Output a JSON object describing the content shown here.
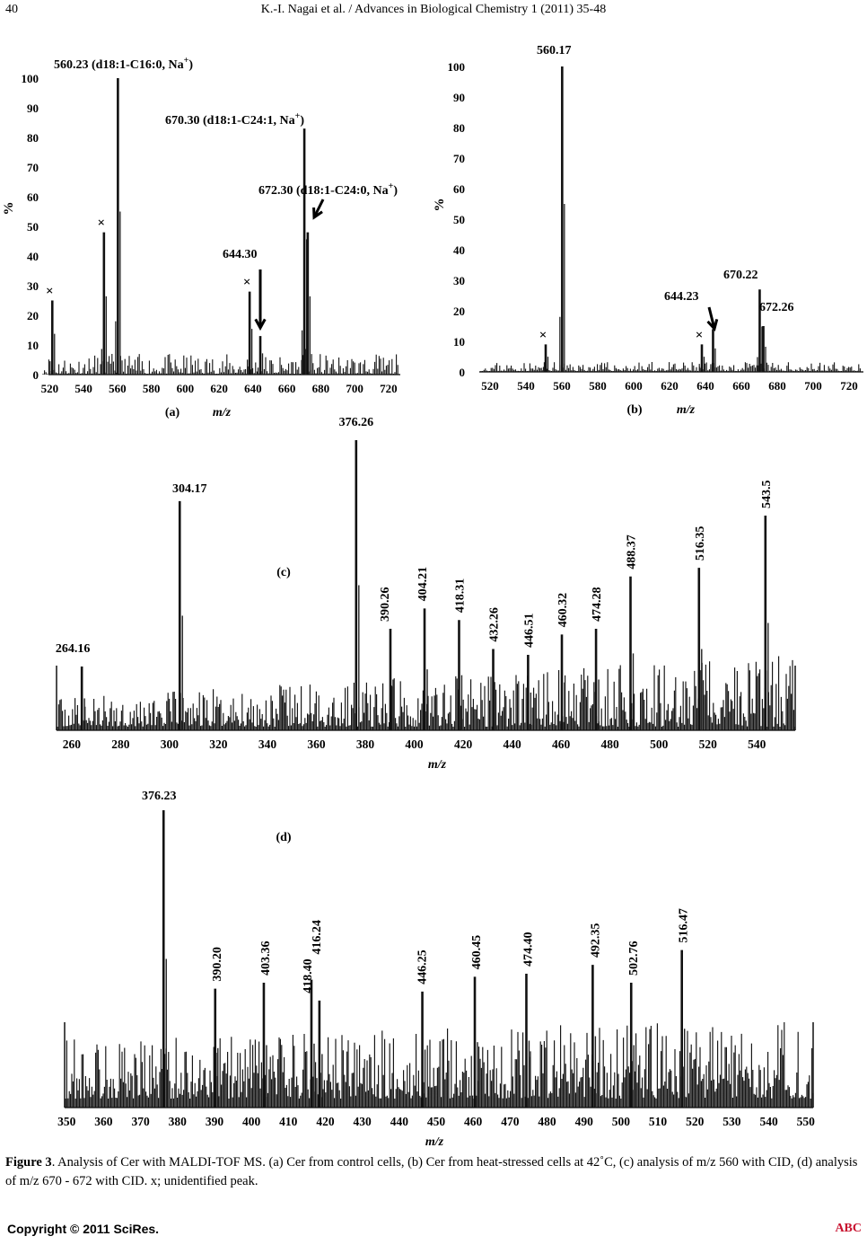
{
  "header": {
    "page_number": "40",
    "citation": "K.-I. Nagai et al. / Advances in Biological Chemistry 1 (2011) 35-48"
  },
  "figure": {
    "caption_label": "Figure 3",
    "caption_text": ". Analysis of Cer with MALDI-TOF MS. (a) Cer from control cells, (b) Cer from heat-stressed cells at 42˚C, (c) analysis of m/z 560 with CID, (d) analysis of m/z 670 - 672 with CID. x; unidentified peak."
  },
  "footer": {
    "copyright": "Copyright © 2011 SciRes.",
    "journal_abbr": "ABC"
  },
  "chart_data": [
    {
      "panel": "(a)",
      "type": "line",
      "xlabel": "m/z",
      "ylabel": "%",
      "xlim": [
        515,
        728
      ],
      "ylim": [
        0,
        100
      ],
      "xticks": [
        520,
        540,
        560,
        580,
        600,
        620,
        640,
        660,
        680,
        700,
        720
      ],
      "yticks": [
        0,
        10,
        20,
        30,
        40,
        50,
        60,
        70,
        80,
        90,
        100
      ],
      "peaks": [
        {
          "x": 521.5,
          "y": 25,
          "mark": "×"
        },
        {
          "x": 552.0,
          "y": 48,
          "mark": "×"
        },
        {
          "x": 560.23,
          "y": 100
        },
        {
          "x": 638.0,
          "y": 28,
          "mark": "×"
        },
        {
          "x": 644.3,
          "y": 13
        },
        {
          "x": 670.3,
          "y": 83
        },
        {
          "x": 672.3,
          "y": 48
        }
      ],
      "annotations": [
        {
          "text": "560.23 (d18:1-C16:0, Na",
          "sup": "+",
          "tail": ")"
        },
        {
          "text": "670.30 (d18:1-C24:1, Na",
          "sup": "+",
          "tail": ")"
        },
        {
          "text": "672.30 (d18:1-C24:0, Na",
          "sup": "+",
          "tail": ")"
        },
        {
          "text": "644.30",
          "sup": "",
          "tail": ""
        }
      ]
    },
    {
      "panel": "(b)",
      "type": "line",
      "xlabel": "m/z",
      "ylabel": "%",
      "xlim": [
        514,
        728
      ],
      "ylim": [
        0,
        100
      ],
      "xticks": [
        520,
        540,
        560,
        580,
        600,
        620,
        640,
        660,
        680,
        700,
        720
      ],
      "yticks": [
        0,
        10,
        20,
        30,
        40,
        50,
        60,
        70,
        80,
        90,
        100
      ],
      "peaks": [
        {
          "x": 551.0,
          "y": 9,
          "mark": "×"
        },
        {
          "x": 560.17,
          "y": 100
        },
        {
          "x": 638.0,
          "y": 9,
          "mark": "×"
        },
        {
          "x": 644.23,
          "y": 14
        },
        {
          "x": 670.22,
          "y": 27
        },
        {
          "x": 672.26,
          "y": 15
        }
      ],
      "annotations": [
        {
          "text": "560.17"
        },
        {
          "text": "670.22"
        },
        {
          "text": "644.23"
        },
        {
          "text": "672.26"
        }
      ]
    },
    {
      "panel": "(c)",
      "type": "line",
      "xlabel": "m/z",
      "xlim": [
        252,
        552
      ],
      "xticks": [
        260,
        280,
        300,
        320,
        340,
        360,
        380,
        400,
        420,
        440,
        460,
        480,
        500,
        520,
        540
      ],
      "peaks": [
        {
          "label": "264.16",
          "x": 264.16,
          "y": 22
        },
        {
          "label": "304.17",
          "x": 304.17,
          "y": 79
        },
        {
          "label": "376.26",
          "x": 376.26,
          "y": 100
        },
        {
          "label": "390.26",
          "x": 390.26,
          "y": 35
        },
        {
          "label": "404.21",
          "x": 404.21,
          "y": 42
        },
        {
          "label": "418.31",
          "x": 418.31,
          "y": 38
        },
        {
          "label": "432.26",
          "x": 432.26,
          "y": 28
        },
        {
          "label": "446.51",
          "x": 446.51,
          "y": 26
        },
        {
          "label": "460.32",
          "x": 460.32,
          "y": 33
        },
        {
          "label": "474.28",
          "x": 474.28,
          "y": 35
        },
        {
          "label": "488.37",
          "x": 488.37,
          "y": 53
        },
        {
          "label": "516.35",
          "x": 516.35,
          "y": 56
        },
        {
          "label": "543.5",
          "x": 543.5,
          "y": 74
        }
      ]
    },
    {
      "panel": "(d)",
      "type": "line",
      "xlabel": "m/z",
      "xlim": [
        348,
        552
      ],
      "xticks": [
        350,
        360,
        370,
        380,
        390,
        400,
        410,
        420,
        430,
        440,
        450,
        460,
        470,
        480,
        490,
        500,
        510,
        520,
        530,
        540,
        550
      ],
      "peaks": [
        {
          "label": "376.23",
          "x": 376.23,
          "y": 100
        },
        {
          "label": "390.20",
          "x": 390.2,
          "y": 40
        },
        {
          "label": "403.36",
          "x": 403.36,
          "y": 42
        },
        {
          "label": "416.24",
          "x": 416.24,
          "y": 43
        },
        {
          "label": "418.40",
          "x": 418.4,
          "y": 36
        },
        {
          "label": "446.25",
          "x": 446.25,
          "y": 39
        },
        {
          "label": "460.45",
          "x": 460.45,
          "y": 44
        },
        {
          "label": "474.40",
          "x": 474.4,
          "y": 45
        },
        {
          "label": "492.35",
          "x": 492.35,
          "y": 48
        },
        {
          "label": "502.76",
          "x": 502.76,
          "y": 42
        },
        {
          "label": "516.47",
          "x": 516.47,
          "y": 53
        }
      ]
    }
  ]
}
